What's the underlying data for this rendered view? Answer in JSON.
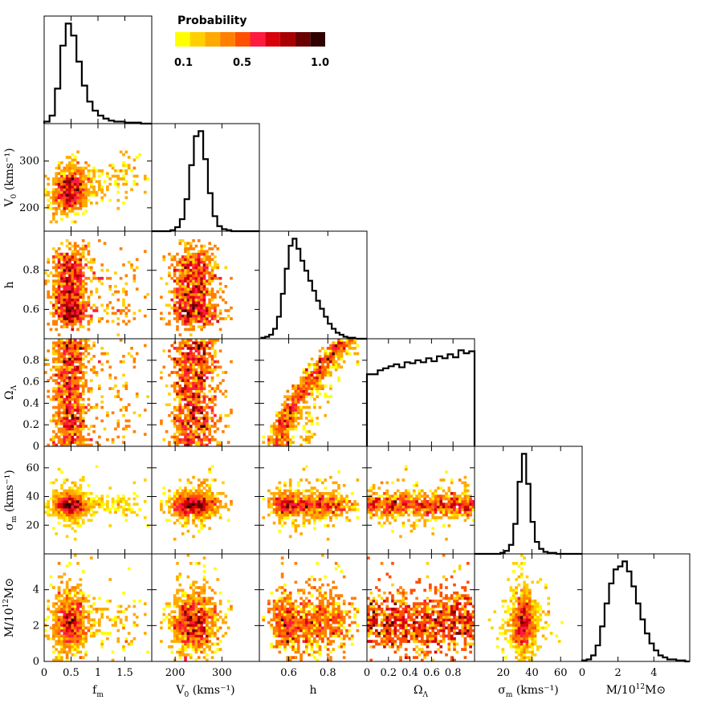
{
  "colorbar": {
    "title": "Probability",
    "tick_labels": [
      "0.1",
      "0.5",
      "1.0"
    ],
    "tick_values": [
      0.1,
      0.5,
      1.0
    ],
    "colors": [
      "#ffff00",
      "#ffd000",
      "#ffaa00",
      "#ff8000",
      "#ff5000",
      "#ff1a40",
      "#d8000a",
      "#a80000",
      "#6a0000",
      "#300000"
    ]
  },
  "axis_labels": {
    "f_m": {
      "main": "f",
      "sub": "m",
      "sup": "",
      "rest": ""
    },
    "V0": {
      "main": "V",
      "sub": "0",
      "sup": "",
      "rest": " (kms⁻¹)"
    },
    "h": {
      "main": "h",
      "sub": "",
      "sup": "",
      "rest": ""
    },
    "Omega": {
      "main": "Ω",
      "sub": "Λ",
      "sup": "",
      "rest": ""
    },
    "sigma": {
      "main": "σ",
      "sub": "m",
      "sup": "",
      "rest": " (kms⁻¹)"
    },
    "M": {
      "main": "M/10",
      "sub": "",
      "sup": "12",
      "rest": "M⊙"
    }
  },
  "chart_data": {
    "type": "corner",
    "parameters": [
      {
        "key": "f_m",
        "lim": [
          0,
          2.0
        ],
        "ticks": [
          0,
          0.5,
          1,
          1.5
        ],
        "tick_labels": [
          "0",
          "0.5",
          "1",
          "1.5"
        ],
        "peak": 0.5,
        "sigma": 0.18
      },
      {
        "key": "V0",
        "lim": [
          150,
          380
        ],
        "ticks": [
          200,
          300
        ],
        "tick_labels": [
          "200",
          "300"
        ],
        "peak": 250,
        "sigma": 25
      },
      {
        "key": "h",
        "lim": [
          0.45,
          1.0
        ],
        "ticks": [
          0.6,
          0.8
        ],
        "tick_labels": [
          "0.6",
          "0.8"
        ],
        "peak": 0.62,
        "sigma": 0.07
      },
      {
        "key": "Omega",
        "lim": [
          0,
          1.0
        ],
        "ticks": [
          0,
          0.2,
          0.4,
          0.6,
          0.8
        ],
        "tick_labels": [
          "0",
          "0.2",
          "0.4",
          "0.6",
          "0.8"
        ],
        "peak": null,
        "sigma": null
      },
      {
        "key": "sigma",
        "lim": [
          0,
          75
        ],
        "ticks": [
          20,
          40,
          60
        ],
        "tick_labels": [
          "20",
          "40",
          "60"
        ],
        "peak": 35,
        "sigma": 4
      },
      {
        "key": "M",
        "lim": [
          0,
          6
        ],
        "ticks": [
          0,
          2,
          4
        ],
        "tick_labels": [
          "0",
          "2",
          "4"
        ],
        "peak": 2.2,
        "sigma": 0.9
      }
    ],
    "diagonal_histograms": [
      {
        "param": "f_m",
        "x": [
          0.05,
          0.15,
          0.25,
          0.35,
          0.45,
          0.55,
          0.65,
          0.75,
          0.85,
          0.95,
          1.05,
          1.15,
          1.25,
          1.35,
          1.45,
          1.55,
          1.65,
          1.75,
          1.85,
          1.95
        ],
        "p": [
          0.02,
          0.08,
          0.35,
          0.78,
          1.0,
          0.88,
          0.62,
          0.38,
          0.22,
          0.13,
          0.08,
          0.05,
          0.03,
          0.02,
          0.02,
          0.01,
          0.01,
          0.01,
          0.0,
          0.0
        ]
      },
      {
        "param": "V0",
        "x": [
          155,
          165,
          175,
          185,
          195,
          205,
          215,
          225,
          235,
          245,
          255,
          265,
          275,
          285,
          295,
          305,
          315,
          325,
          335,
          345,
          355,
          365,
          375
        ],
        "p": [
          0,
          0,
          0,
          0,
          0.01,
          0.04,
          0.12,
          0.32,
          0.66,
          0.95,
          1.0,
          0.72,
          0.38,
          0.15,
          0.05,
          0.02,
          0.01,
          0,
          0,
          0,
          0,
          0,
          0
        ]
      },
      {
        "param": "h",
        "x": [
          0.47,
          0.49,
          0.51,
          0.53,
          0.55,
          0.57,
          0.59,
          0.61,
          0.63,
          0.65,
          0.67,
          0.69,
          0.71,
          0.73,
          0.75,
          0.77,
          0.79,
          0.81,
          0.83,
          0.85,
          0.87,
          0.89,
          0.91,
          0.93,
          0.95,
          0.97,
          0.99
        ],
        "p": [
          0.01,
          0.02,
          0.04,
          0.1,
          0.22,
          0.45,
          0.7,
          0.93,
          1.0,
          0.9,
          0.78,
          0.68,
          0.58,
          0.48,
          0.38,
          0.3,
          0.22,
          0.15,
          0.1,
          0.06,
          0.04,
          0.02,
          0.01,
          0.01,
          0.0,
          0.0,
          0.0
        ]
      },
      {
        "param": "Omega",
        "x": [
          0.025,
          0.075,
          0.125,
          0.175,
          0.225,
          0.275,
          0.325,
          0.375,
          0.425,
          0.475,
          0.525,
          0.575,
          0.625,
          0.675,
          0.725,
          0.775,
          0.825,
          0.875,
          0.925,
          0.975
        ],
        "p": [
          0.72,
          0.72,
          0.76,
          0.78,
          0.8,
          0.82,
          0.79,
          0.84,
          0.83,
          0.86,
          0.84,
          0.88,
          0.85,
          0.9,
          0.88,
          0.92,
          0.89,
          0.96,
          0.93,
          0.95
        ]
      },
      {
        "param": "sigma",
        "x": [
          1.5,
          4.5,
          7.5,
          10.5,
          13.5,
          16.5,
          19.5,
          22.5,
          25.5,
          28.5,
          31.5,
          34.5,
          37.5,
          40.5,
          43.5,
          46.5,
          49.5,
          52.5,
          55.5,
          58.5,
          61.5,
          64.5,
          67.5,
          70.5,
          73.5
        ],
        "p": [
          0,
          0,
          0,
          0,
          0,
          0,
          0.01,
          0.03,
          0.09,
          0.3,
          0.72,
          1.0,
          0.7,
          0.32,
          0.12,
          0.05,
          0.02,
          0.01,
          0.01,
          0,
          0,
          0,
          0,
          0,
          0
        ]
      },
      {
        "param": "M",
        "x": [
          0.125,
          0.375,
          0.625,
          0.875,
          1.125,
          1.375,
          1.625,
          1.875,
          2.125,
          2.375,
          2.625,
          2.875,
          3.125,
          3.375,
          3.625,
          3.875,
          4.125,
          4.375,
          4.625,
          4.875,
          5.125,
          5.375,
          5.625,
          5.875
        ],
        "p": [
          0.01,
          0.02,
          0.06,
          0.16,
          0.35,
          0.58,
          0.78,
          0.92,
          0.95,
          1.0,
          0.9,
          0.75,
          0.58,
          0.42,
          0.28,
          0.18,
          0.11,
          0.06,
          0.04,
          0.02,
          0.02,
          0.01,
          0.01,
          0.0
        ]
      }
    ],
    "scatter_density": "2D posterior density panels for every parameter pair below the diagonal; color scale per Probability colorbar",
    "grid": false
  }
}
